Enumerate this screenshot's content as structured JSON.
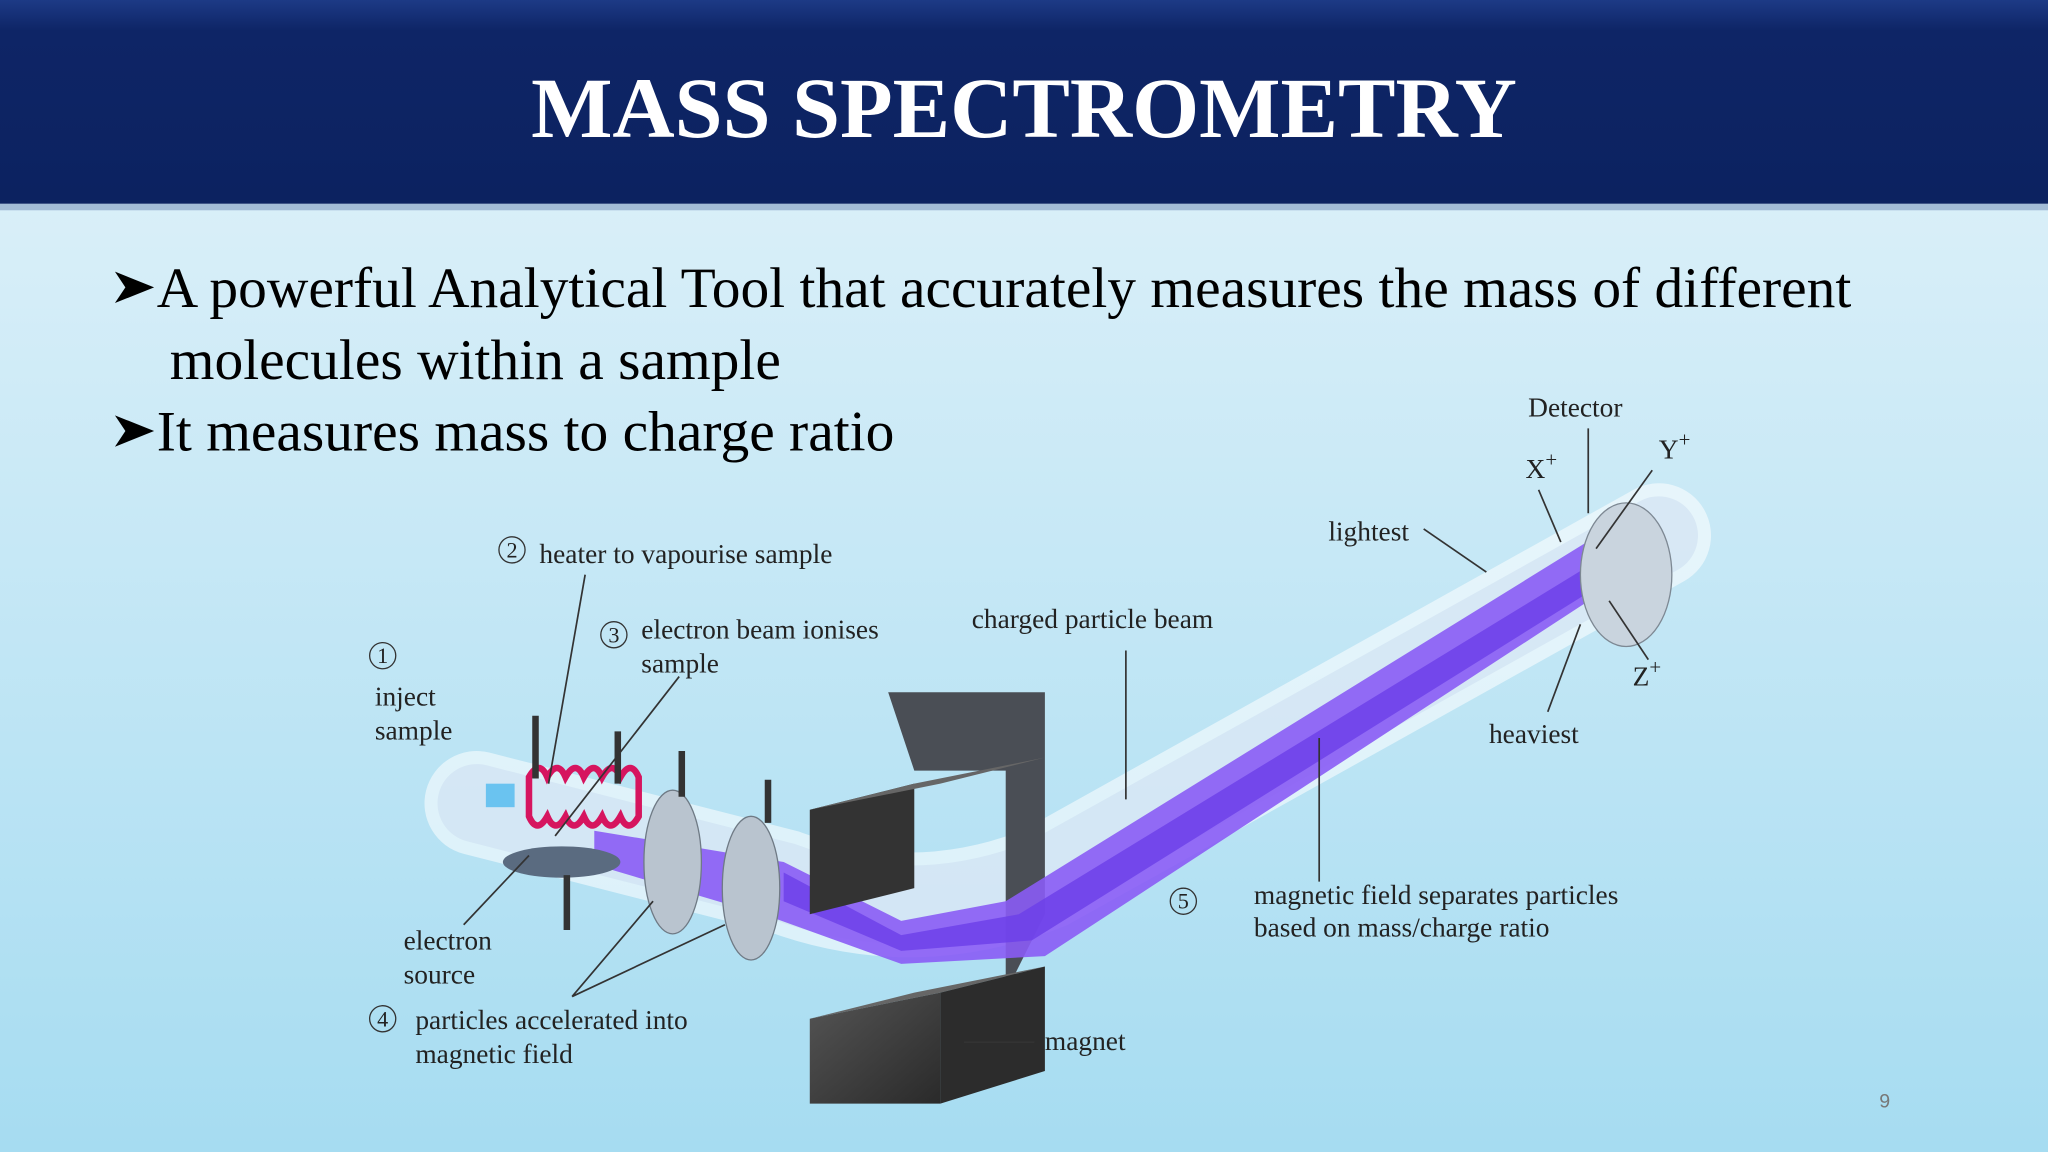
{
  "header": {
    "title": "MASS SPECTROMETRY"
  },
  "bullets": [
    {
      "lines": [
        "A powerful Analytical Tool that accurately measures the mass of different",
        "molecules within a sample"
      ]
    },
    {
      "lines": [
        "It measures mass to charge ratio"
      ]
    }
  ],
  "diagram": {
    "steps": [
      {
        "number": "1",
        "lines": [
          "inject",
          "sample"
        ]
      },
      {
        "number": "2",
        "lines": [
          "heater to vapourise sample"
        ]
      },
      {
        "number": "3",
        "lines": [
          "electron beam ionises",
          "sample"
        ]
      },
      {
        "number": "4",
        "lines": [
          "particles accelerated into",
          "magnetic field"
        ]
      },
      {
        "number": "5",
        "lines": [
          "magnetic field separates particles",
          "based on mass/charge ratio"
        ]
      }
    ],
    "labels": {
      "electron_source": [
        "electron",
        "source"
      ],
      "charged_particle_beam": "charged particle beam",
      "magnet": "magnet",
      "detector": "Detector",
      "lightest": "lightest",
      "heaviest": "heaviest"
    },
    "ions": [
      {
        "letter": "X",
        "charge": "+"
      },
      {
        "letter": "Y",
        "charge": "+"
      },
      {
        "letter": "Z",
        "charge": "+"
      }
    ]
  },
  "footer": {
    "page_number": "9"
  }
}
